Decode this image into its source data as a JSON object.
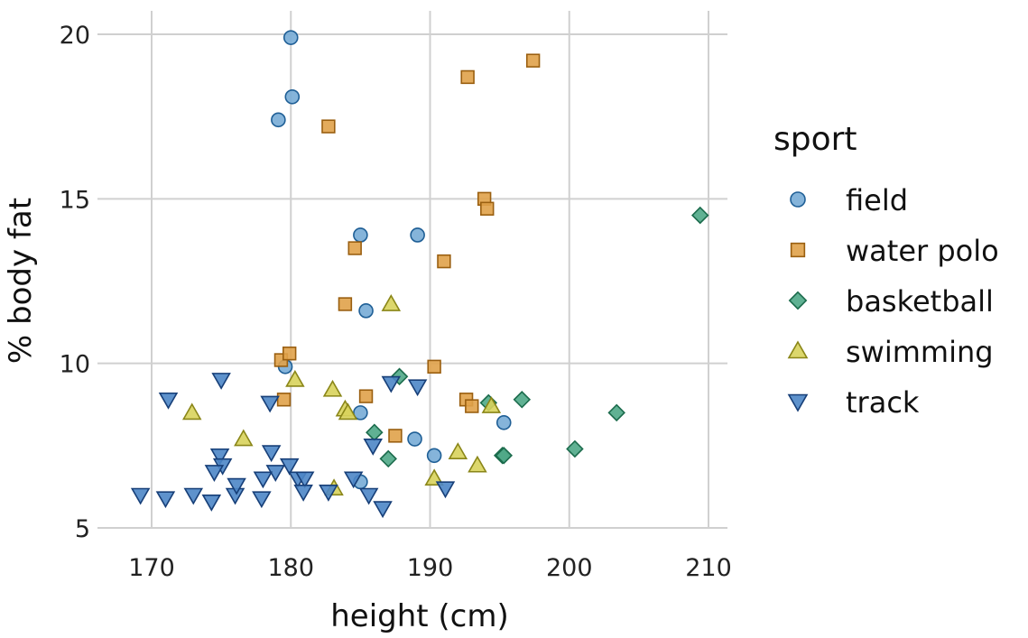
{
  "chart_data": {
    "type": "scatter",
    "xlabel": "height (cm)",
    "ylabel": "% body fat",
    "xlim": [
      166,
      211
    ],
    "ylim": [
      4.5,
      20.5
    ],
    "xticks": [
      170,
      180,
      190,
      200,
      210
    ],
    "yticks": [
      5,
      10,
      15,
      20
    ],
    "grid": true,
    "legend": {
      "title": "sport",
      "placement": "right"
    },
    "series": [
      {
        "name": "field",
        "marker": "circle",
        "fill": "#78acd6",
        "stroke": "#1f5f96",
        "points": [
          [
            180.0,
            19.9
          ],
          [
            180.1,
            18.1
          ],
          [
            179.1,
            17.4
          ],
          [
            185.0,
            13.9
          ],
          [
            189.1,
            13.9
          ],
          [
            185.4,
            11.6
          ],
          [
            179.6,
            9.9
          ],
          [
            185.0,
            8.5
          ],
          [
            188.9,
            7.7
          ],
          [
            190.3,
            7.2
          ],
          [
            185.0,
            6.4
          ],
          [
            195.3,
            8.2
          ]
        ]
      },
      {
        "name": "water polo",
        "marker": "square",
        "fill": "#e0a24a",
        "stroke": "#9a5f10",
        "points": [
          [
            182.7,
            17.2
          ],
          [
            192.7,
            18.7
          ],
          [
            197.4,
            19.2
          ],
          [
            193.9,
            15.0
          ],
          [
            194.1,
            14.7
          ],
          [
            184.6,
            13.5
          ],
          [
            191.0,
            13.1
          ],
          [
            183.9,
            11.8
          ],
          [
            179.3,
            10.1
          ],
          [
            179.9,
            10.3
          ],
          [
            190.3,
            9.9
          ],
          [
            179.5,
            8.9
          ],
          [
            185.4,
            9.0
          ],
          [
            192.6,
            8.9
          ],
          [
            193.0,
            8.7
          ],
          [
            187.5,
            7.8
          ]
        ]
      },
      {
        "name": "basketball",
        "marker": "diamond",
        "fill": "#4fa987",
        "stroke": "#1b6b4c",
        "points": [
          [
            209.4,
            14.5
          ],
          [
            187.8,
            9.6
          ],
          [
            194.2,
            8.8
          ],
          [
            196.6,
            8.9
          ],
          [
            203.4,
            8.5
          ],
          [
            186.0,
            7.9
          ],
          [
            187.0,
            7.1
          ],
          [
            195.2,
            7.2
          ],
          [
            195.3,
            7.2
          ],
          [
            200.4,
            7.4
          ]
        ]
      },
      {
        "name": "swimming",
        "marker": "triangle-up",
        "fill": "#d8d35c",
        "stroke": "#8a8618",
        "points": [
          [
            187.2,
            11.8
          ],
          [
            180.3,
            9.5
          ],
          [
            183.0,
            9.2
          ],
          [
            172.9,
            8.5
          ],
          [
            183.9,
            8.6
          ],
          [
            184.1,
            8.5
          ],
          [
            194.4,
            8.7
          ],
          [
            176.6,
            7.7
          ],
          [
            192.0,
            7.3
          ],
          [
            193.4,
            6.9
          ],
          [
            190.3,
            6.5
          ],
          [
            183.1,
            6.2
          ]
        ]
      },
      {
        "name": "track",
        "marker": "triangle-down",
        "fill": "#4d86c6",
        "stroke": "#173f78",
        "points": [
          [
            171.2,
            8.9
          ],
          [
            175.0,
            9.5
          ],
          [
            178.5,
            8.8
          ],
          [
            187.2,
            9.4
          ],
          [
            189.1,
            9.3
          ],
          [
            174.9,
            7.2
          ],
          [
            175.1,
            6.9
          ],
          [
            178.6,
            7.3
          ],
          [
            174.5,
            6.7
          ],
          [
            178.9,
            6.7
          ],
          [
            179.9,
            6.9
          ],
          [
            178.0,
            6.5
          ],
          [
            180.5,
            6.5
          ],
          [
            181.0,
            6.5
          ],
          [
            184.5,
            6.5
          ],
          [
            185.9,
            7.5
          ],
          [
            169.2,
            6.0
          ],
          [
            171.0,
            5.9
          ],
          [
            173.0,
            6.0
          ],
          [
            174.3,
            5.8
          ],
          [
            176.0,
            6.0
          ],
          [
            176.1,
            6.3
          ],
          [
            177.9,
            5.9
          ],
          [
            180.9,
            6.1
          ],
          [
            182.7,
            6.1
          ],
          [
            185.6,
            6.0
          ],
          [
            186.6,
            5.6
          ],
          [
            191.1,
            6.2
          ]
        ]
      }
    ]
  }
}
